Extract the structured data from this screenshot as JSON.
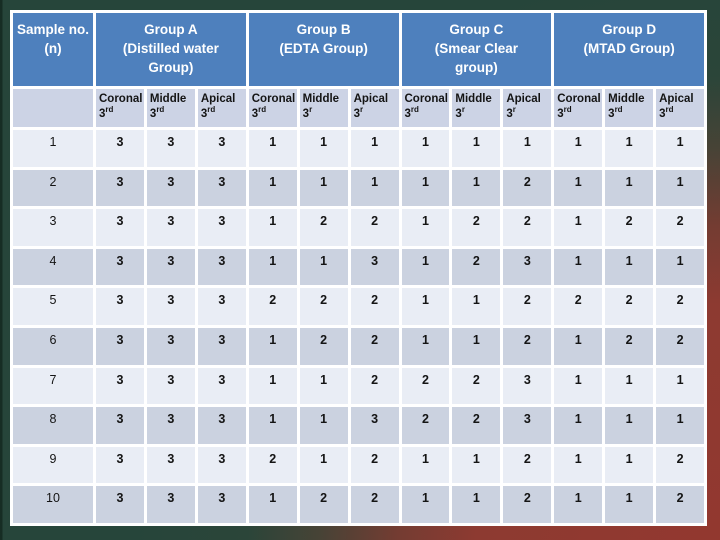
{
  "chart_data": {
    "type": "table",
    "corner_header_line1": "Sample no.",
    "corner_header_line2": "(n)",
    "groups": [
      {
        "name": "Group A",
        "subtitle": "(Distilled water Group)",
        "sub_columns": [
          {
            "label": "Coronal",
            "ordinal": "3",
            "suffix": "rd"
          },
          {
            "label": "Middle",
            "ordinal": "3",
            "suffix": "rd"
          },
          {
            "label": "Apical",
            "ordinal": "3",
            "suffix": "rd"
          }
        ]
      },
      {
        "name": "Group B",
        "subtitle": "(EDTA Group)",
        "sub_columns": [
          {
            "label": "Coronal",
            "ordinal": "3",
            "suffix": "rd"
          },
          {
            "label": "Middle",
            "ordinal": "3",
            "suffix": "r"
          },
          {
            "label": "Apical",
            "ordinal": "3",
            "suffix": "r"
          }
        ]
      },
      {
        "name": "Group C",
        "subtitle": "(Smear Clear group)",
        "sub_columns": [
          {
            "label": "Coronal",
            "ordinal": "3",
            "suffix": "rd"
          },
          {
            "label": "Middle",
            "ordinal": "3",
            "suffix": "r"
          },
          {
            "label": "Apical",
            "ordinal": "3",
            "suffix": "r"
          }
        ]
      },
      {
        "name": "Group D",
        "subtitle": "(MTAD Group)",
        "sub_columns": [
          {
            "label": "Coronal",
            "ordinal": "3",
            "suffix": "rd"
          },
          {
            "label": "Middle",
            "ordinal": "3",
            "suffix": "rd"
          },
          {
            "label": "Apical",
            "ordinal": "3",
            "suffix": "rd"
          }
        ]
      }
    ],
    "rows": [
      {
        "sample": "1",
        "values": [
          3,
          3,
          3,
          1,
          1,
          1,
          1,
          1,
          1,
          1,
          1,
          1
        ]
      },
      {
        "sample": "2",
        "values": [
          3,
          3,
          3,
          1,
          1,
          1,
          1,
          1,
          2,
          1,
          1,
          1
        ]
      },
      {
        "sample": "3",
        "values": [
          3,
          3,
          3,
          1,
          2,
          2,
          1,
          2,
          2,
          1,
          2,
          2
        ]
      },
      {
        "sample": "4",
        "values": [
          3,
          3,
          3,
          1,
          1,
          3,
          1,
          2,
          3,
          1,
          1,
          1
        ]
      },
      {
        "sample": "5",
        "values": [
          3,
          3,
          3,
          2,
          2,
          2,
          1,
          1,
          2,
          2,
          2,
          2
        ]
      },
      {
        "sample": "6",
        "values": [
          3,
          3,
          3,
          1,
          2,
          2,
          1,
          1,
          2,
          1,
          2,
          2
        ]
      },
      {
        "sample": "7",
        "values": [
          3,
          3,
          3,
          1,
          1,
          2,
          2,
          2,
          3,
          1,
          1,
          1
        ]
      },
      {
        "sample": "8",
        "values": [
          3,
          3,
          3,
          1,
          1,
          3,
          2,
          2,
          3,
          1,
          1,
          1
        ]
      },
      {
        "sample": "9",
        "values": [
          3,
          3,
          3,
          2,
          1,
          2,
          1,
          1,
          2,
          1,
          1,
          2
        ]
      },
      {
        "sample": "10",
        "values": [
          3,
          3,
          3,
          1,
          2,
          2,
          1,
          1,
          2,
          1,
          1,
          2
        ]
      }
    ]
  },
  "colors": {
    "header_blue": "#4e80bd",
    "subheader_bg": "#ccd3e5",
    "row_odd_bg": "#e9edf5",
    "row_even_bg": "#cbd2e0",
    "gridline_white": "#ffffff",
    "background_green": "#26453a",
    "background_red": "#8e3a31",
    "header_text": "#ffffff",
    "cell_text": "#141414"
  }
}
